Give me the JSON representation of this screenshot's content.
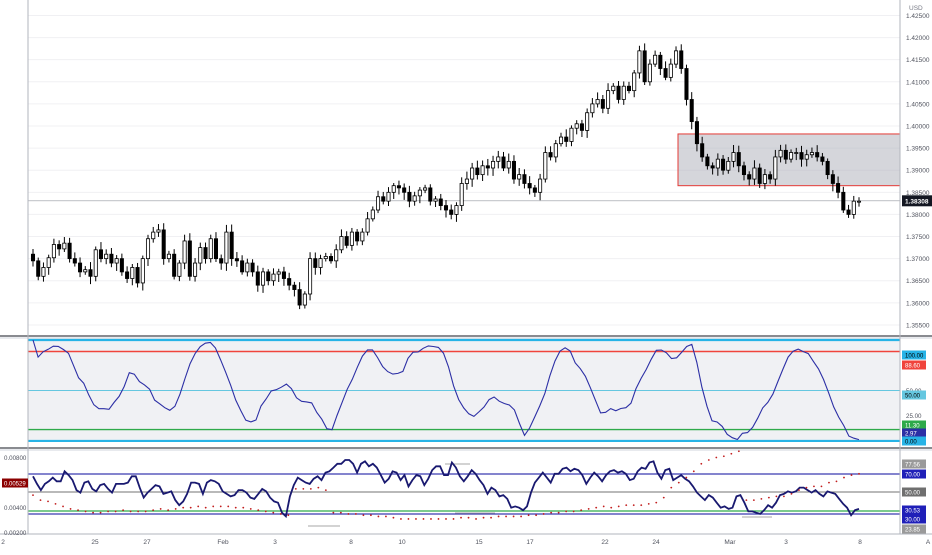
{
  "colors": {
    "background": "#ffffff",
    "grid": "#f0f0f3",
    "candle_up": "#ffffff",
    "candle_down": "#000000",
    "wick": "#000000",
    "current_price_tag": "#131722",
    "zone_fill": "#b2b5be",
    "zone_border": "#e53935",
    "stoch_line": "#2c2fa5",
    "stoch_fill": "#e6e7ec",
    "band_outer": "#27b3e6",
    "band_upper": "#f0443c",
    "band_mid": "#65c7e0",
    "band_lower": "#2eaa4a",
    "ind2_line": "#191970",
    "ind2_upper": "#3a3ab0",
    "ind2_mid": "#444444",
    "ind2_lower": "#2eaa4a",
    "ind2_dots": "#c21e1e",
    "ind2_tag_red": "#8b0000",
    "ind2_tag_blue": "#1f1fb8",
    "ind2_tag_gray": "#6f6f6f",
    "ind2_tag_gray_light": "#9a9a9a"
  },
  "price_axis": {
    "currency": "USD",
    "ticks": [
      "1.42500",
      "1.42000",
      "1.41500",
      "1.41000",
      "1.40500",
      "1.40000",
      "1.39500",
      "1.39000",
      "1.38500",
      "1.38000",
      "1.37500",
      "1.37000",
      "1.36500",
      "1.36000",
      "1.35500"
    ],
    "current_price": "1.38308"
  },
  "time_axis": {
    "labels": [
      "2",
      "25",
      "27",
      "Feb",
      "3",
      "8",
      "10",
      "15",
      "17",
      "22",
      "24",
      "Mar",
      "3",
      "8",
      "A"
    ]
  },
  "stoch_axis": {
    "ticks": [
      "75.00",
      "50.00",
      "25.00",
      "0.00"
    ],
    "tags": [
      "100.00",
      "88.60",
      "50.00",
      "11.30",
      "2.97",
      "0.00"
    ]
  },
  "ind2_axis": {
    "ticks": [
      "0.00800",
      "0.00600",
      "0.00400",
      "0.00200"
    ],
    "left_tag": "0.00529",
    "tags": [
      "77.56",
      "70.00",
      "50.00",
      "30.53",
      "30.00",
      "23.85"
    ]
  },
  "chart_data": [
    {
      "type": "candlestick",
      "title": "",
      "ylim": [
        1.3525,
        1.4285
      ],
      "current_price": 1.38308,
      "zone": {
        "low": 1.3865,
        "high": 1.3982
      },
      "closes": [
        1.3695,
        1.366,
        1.368,
        1.3702,
        1.3732,
        1.3722,
        1.3735,
        1.37,
        1.369,
        1.367,
        1.3675,
        1.366,
        1.372,
        1.37,
        1.371,
        1.369,
        1.37,
        1.367,
        1.3655,
        1.368,
        1.3645,
        1.37,
        1.3745,
        1.376,
        1.3765,
        1.37,
        1.371,
        1.366,
        1.369,
        1.374,
        1.366,
        1.369,
        1.3725,
        1.37,
        1.3745,
        1.37,
        1.369,
        1.376,
        1.37,
        1.3695,
        1.367,
        1.369,
        1.367,
        1.364,
        1.367,
        1.365,
        1.3665,
        1.367,
        1.3655,
        1.364,
        1.363,
        1.3595,
        1.362,
        1.37,
        1.368,
        1.37,
        1.3705,
        1.3695,
        1.372,
        1.375,
        1.373,
        1.376,
        1.374,
        1.376,
        1.379,
        1.381,
        1.384,
        1.383,
        1.385,
        1.3865,
        1.386,
        1.385,
        1.383,
        1.3842,
        1.3855,
        1.386,
        1.383,
        1.3835,
        1.382,
        1.381,
        1.38,
        1.382,
        1.387,
        1.388,
        1.3905,
        1.389,
        1.391,
        1.3905,
        1.392,
        1.393,
        1.3905,
        1.392,
        1.388,
        1.389,
        1.387,
        1.386,
        1.385,
        1.388,
        1.394,
        1.393,
        1.396,
        1.3975,
        1.3965,
        1.3995,
        1.4005,
        1.399,
        1.403,
        1.405,
        1.406,
        1.404,
        1.408,
        1.409,
        1.406,
        1.409,
        1.408,
        1.412,
        1.417,
        1.41,
        1.414,
        1.416,
        1.413,
        1.411,
        1.414,
        1.417,
        1.413,
        1.406,
        1.401,
        1.396,
        1.393,
        1.391,
        1.3905,
        1.3925,
        1.39,
        1.392,
        1.394,
        1.391,
        1.389,
        1.388,
        1.3905,
        1.387,
        1.389,
        1.388,
        1.393,
        1.3945,
        1.3925,
        1.394,
        1.394,
        1.3925,
        1.3935,
        1.394,
        1.393,
        1.392,
        1.389,
        1.387,
        1.385,
        1.381,
        1.38,
        1.383,
        1.383
      ]
    },
    {
      "type": "line",
      "title": "",
      "ylim": [
        -5,
        100
      ],
      "levels": [
        100,
        88.6,
        50,
        11.3,
        2.97,
        0
      ],
      "values": [
        100,
        83.1,
        88.3,
        90.8,
        93.9,
        93.7,
        90.6,
        86.8,
        74.8,
        62.6,
        57.2,
        45.7,
        35.9,
        31.9,
        31.9,
        31.4,
        38.2,
        44.1,
        53.9,
        67.6,
        66.1,
        58.8,
        55.5,
        51.3,
        40.5,
        36.8,
        32.9,
        30.4,
        34.3,
        46.4,
        61.9,
        76.6,
        86.7,
        93.4,
        96.8,
        97.5,
        92.2,
        80.6,
        68.2,
        55.3,
        40.6,
        30.1,
        20.6,
        18.9,
        20.8,
        34.6,
        41.6,
        49.5,
        50.8,
        53.2,
        56.3,
        51.9,
        42.7,
        39.3,
        38.7,
        37.7,
        28.2,
        21.5,
        12.1,
        11.1,
        25.2,
        38.2,
        51.2,
        61.1,
        73.0,
        84.1,
        90.2,
        90.2,
        82.6,
        73.6,
        68.7,
        66.2,
        66.9,
        68.9,
        81.9,
        87.9,
        88.1,
        91.8,
        94.2,
        93.6,
        92.7,
        86.9,
        73.4,
        54.5,
        41.0,
        32.7,
        26.9,
        24.3,
        28.8,
        33.6,
        41.0,
        43.5,
        39.4,
        37.1,
        35.6,
        30.8,
        17.3,
        5.5,
        12.8,
        23.7,
        34.6,
        46.9,
        64.6,
        79.2,
        89.0,
        92.3,
        89.1,
        77.4,
        71.6,
        64.0,
        52.7,
        40.2,
        27.8,
        28.4,
        32.0,
        29.9,
        32.1,
        32.9,
        37.4,
        51.9,
        62.0,
        70.8,
        80.9,
        89.8,
        90.1,
        87.3,
        81.7,
        82.4,
        87.7,
        93.6,
        95.6,
        77.9,
        53.2,
        34.3,
        20.0,
        18.8,
        14.4,
        6.6,
        3.2,
        1.4,
        7.6,
        8.3,
        13.4,
        22.5,
        32.7,
        38.2,
        46.4,
        58.9,
        71.3,
        83.1,
        88.9,
        91.0,
        88.5,
        86.5,
        78.8,
        71.4,
        61.0,
        47.8,
        33.7,
        23.6,
        15.2,
        4.8,
        2.7,
        1.3
      ]
    },
    {
      "type": "line",
      "title": "",
      "ylim": [
        0.0019,
        0.0086
      ],
      "levels": [
        77.56,
        70,
        50,
        30.53,
        30,
        23.85
      ],
      "values": [
        0.0065,
        0.0059,
        0.0054,
        0.0059,
        0.0061,
        0.0064,
        0.0061,
        0.0061,
        0.0069,
        0.0066,
        0.0062,
        0.0054,
        0.0052,
        0.006,
        0.0061,
        0.0055,
        0.0053,
        0.0058,
        0.0059,
        0.0055,
        0.0052,
        0.0059,
        0.0059,
        0.0059,
        0.006,
        0.0065,
        0.0065,
        0.0056,
        0.0048,
        0.0052,
        0.0055,
        0.0058,
        0.0057,
        0.0051,
        0.0052,
        0.0053,
        0.0046,
        0.0042,
        0.0045,
        0.0051,
        0.006,
        0.006,
        0.0059,
        0.0051,
        0.006,
        0.0062,
        0.0061,
        0.0059,
        0.0053,
        0.0051,
        0.0049,
        0.005,
        0.0054,
        0.0054,
        0.0052,
        0.0048,
        0.0047,
        0.0051,
        0.0055,
        0.0053,
        0.0048,
        0.0045,
        0.0044,
        0.0036,
        0.0033,
        0.0049,
        0.0058,
        0.0064,
        0.0062,
        0.006,
        0.0059,
        0.0063,
        0.0065,
        0.0062,
        0.0068,
        0.0069,
        0.0072,
        0.0075,
        0.0075,
        0.0078,
        0.0078,
        0.0075,
        0.0068,
        0.0075,
        0.0077,
        0.0073,
        0.0075,
        0.0072,
        0.0066,
        0.006,
        0.0063,
        0.0069,
        0.0068,
        0.0062,
        0.0066,
        0.0057,
        0.0062,
        0.0066,
        0.0065,
        0.0058,
        0.0063,
        0.007,
        0.0073,
        0.0073,
        0.0066,
        0.0066,
        0.0076,
        0.0072,
        0.0065,
        0.0061,
        0.0065,
        0.007,
        0.0067,
        0.0062,
        0.0058,
        0.0051,
        0.0056,
        0.0054,
        0.0049,
        0.005,
        0.0047,
        0.004,
        0.0041,
        0.004,
        0.0038,
        0.0041,
        0.0052,
        0.006,
        0.0064,
        0.0068,
        0.0064,
        0.006,
        0.0067,
        0.0067,
        0.0071,
        0.0072,
        0.0069,
        0.0071,
        0.007,
        0.0066,
        0.0059,
        0.0064,
        0.0068,
        0.0065,
        0.0061,
        0.0066,
        0.0069,
        0.007,
        0.0068,
        0.0069,
        0.0067,
        0.0062,
        0.0063,
        0.0069,
        0.0072,
        0.0071,
        0.0076,
        0.0077,
        0.0068,
        0.0063,
        0.007,
        0.0071,
        0.0062,
        0.0064,
        0.0066,
        0.0063,
        0.0061,
        0.0057,
        0.0052,
        0.0049,
        0.0046,
        0.005,
        0.0048,
        0.0044,
        0.004,
        0.0041,
        0.0039,
        0.004,
        0.0049,
        0.005,
        0.0044,
        0.0037,
        0.0037,
        0.0036,
        0.0035,
        0.0038,
        0.0042,
        0.004,
        0.0044,
        0.005,
        0.0051,
        0.0053,
        0.0052,
        0.0053,
        0.0056,
        0.0056,
        0.0054,
        0.0052,
        0.0054,
        0.0051,
        0.0049,
        0.0053,
        0.0052,
        0.0051,
        0.0047,
        0.0043,
        0.004,
        0.0034,
        0.0038,
        0.0039
      ],
      "dot_values": [
        0.005,
        0.0046,
        0.0045,
        0.0043,
        0.0041,
        0.0039,
        0.0038,
        0.0037,
        0.0036,
        0.0036,
        0.0037,
        0.0037,
        0.0038,
        0.0037,
        0.0037,
        0.0037,
        0.0038,
        0.0039,
        0.0038,
        0.0039,
        0.004,
        0.004,
        0.0041,
        0.004,
        0.0041,
        0.0041,
        0.0041,
        0.004,
        0.004,
        0.0039,
        0.0038,
        0.0037,
        0.0036,
        0.0035,
        0.0034,
        0.0055,
        0.0055,
        0.0055,
        0.0056,
        0.0054,
        0.0036,
        0.0036,
        0.0035,
        0.0035,
        0.0034,
        0.0034,
        0.0033,
        0.0033,
        0.0032,
        0.0031,
        0.0031,
        0.0031,
        0.0031,
        0.0031,
        0.0031,
        0.0031,
        0.0031,
        0.0032,
        0.0032,
        0.0031,
        0.0032,
        0.0032,
        0.0033,
        0.0033,
        0.0033,
        0.0033,
        0.0034,
        0.0034,
        0.0035,
        0.0036,
        0.0036,
        0.0037,
        0.0037,
        0.0038,
        0.0039,
        0.004,
        0.0041,
        0.004,
        0.0041,
        0.0042,
        0.0042,
        0.0042,
        0.0043,
        0.0044,
        0.0048,
        0.0056,
        0.006,
        0.0064,
        0.0069,
        0.0075,
        0.0078,
        0.008,
        0.0081,
        0.0083,
        0.0085,
        0.0046,
        0.0046,
        0.0047,
        0.0048,
        0.0049,
        0.0049,
        0.0051,
        0.0054,
        0.0056,
        0.0057,
        0.0057,
        0.006,
        0.0061,
        0.0064,
        0.0066,
        0.0067
      ]
    }
  ]
}
